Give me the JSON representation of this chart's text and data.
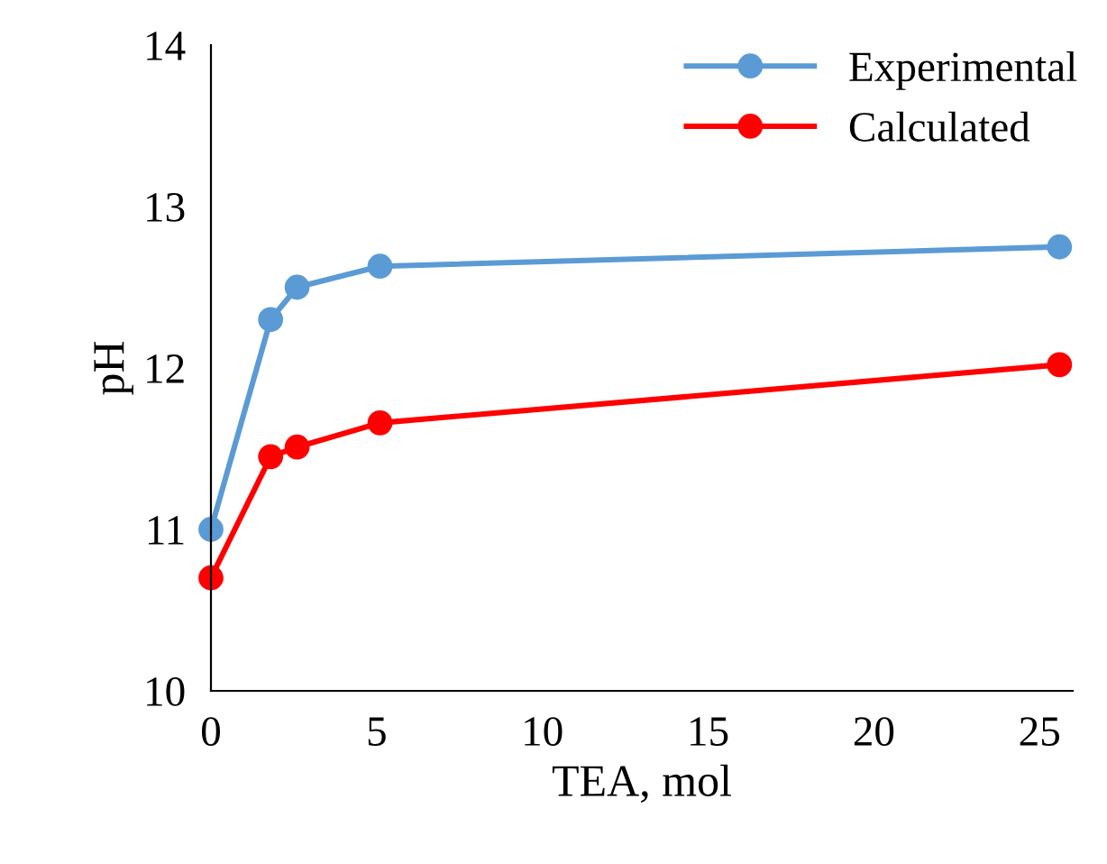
{
  "chart_data": {
    "type": "line",
    "xlabel": "TEA, mol",
    "ylabel": "pH",
    "x": [
      0,
      1.8,
      2.6,
      5.1,
      25.6
    ],
    "series": [
      {
        "name": "Experimental",
        "color": "#5b9bd5",
        "values": [
          11.0,
          12.3,
          12.5,
          12.63,
          12.75
        ]
      },
      {
        "name": "Calculated",
        "color": "#ff0000",
        "values": [
          10.7,
          11.45,
          11.51,
          11.66,
          12.02
        ]
      }
    ],
    "xlim": [
      0,
      26
    ],
    "xticks": [
      0,
      5,
      10,
      15,
      20,
      25
    ],
    "ylim": [
      10,
      14
    ],
    "yticks": [
      10,
      11,
      12,
      13,
      14
    ],
    "marker": "circle",
    "line_style": "solid",
    "legend": "top right",
    "grid": false
  }
}
